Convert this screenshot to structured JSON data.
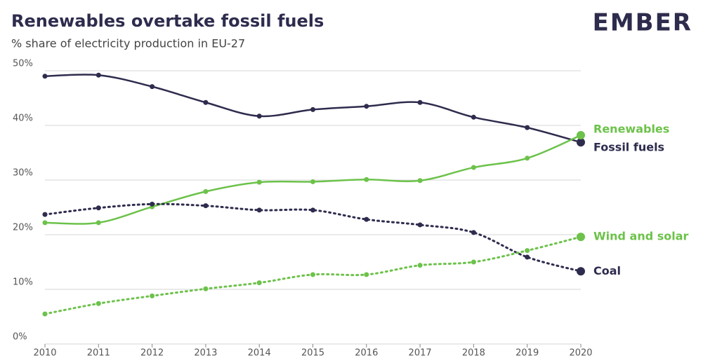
{
  "chart_data": {
    "type": "line",
    "title": "Renewables overtake fossil fuels",
    "subtitle": "% share of electricity production in EU-27",
    "logo": "EMBER",
    "x": [
      2010,
      2011,
      2012,
      2013,
      2014,
      2015,
      2016,
      2017,
      2018,
      2019,
      2020
    ],
    "xlim": [
      2010,
      2020
    ],
    "xticks": [
      2010,
      2011,
      2012,
      2013,
      2014,
      2015,
      2016,
      2017,
      2018,
      2019,
      2020
    ],
    "ylim": [
      0,
      50
    ],
    "yticks": [
      {
        "value": 0,
        "label": "0%"
      },
      {
        "value": 10,
        "label": "10%"
      },
      {
        "value": 20,
        "label": "20%"
      },
      {
        "value": 30,
        "label": "30%"
      },
      {
        "value": 40,
        "label": "40%"
      },
      {
        "value": 50,
        "label": "50%"
      }
    ],
    "grid": true,
    "series": [
      {
        "name": "Fossil fuels",
        "color": "#2e2c4d",
        "dashed": false,
        "values": [
          49.0,
          49.2,
          47.1,
          44.2,
          41.7,
          42.9,
          43.5,
          44.2,
          41.5,
          39.6,
          36.9
        ]
      },
      {
        "name": "Renewables",
        "color": "#6cc24a",
        "dashed": false,
        "values": [
          22.2,
          22.2,
          25.1,
          27.9,
          29.6,
          29.7,
          30.1,
          29.9,
          32.3,
          34.0,
          38.2
        ]
      },
      {
        "name": "Coal",
        "color": "#2e2c4d",
        "dashed": true,
        "values": [
          23.7,
          24.9,
          25.6,
          25.3,
          24.5,
          24.5,
          22.8,
          21.8,
          20.4,
          15.9,
          13.3
        ]
      },
      {
        "name": "Wind and solar",
        "color": "#6cc24a",
        "dashed": true,
        "values": [
          5.5,
          7.4,
          8.8,
          10.1,
          11.2,
          12.7,
          12.7,
          14.4,
          15.0,
          17.1,
          19.6
        ]
      }
    ]
  }
}
